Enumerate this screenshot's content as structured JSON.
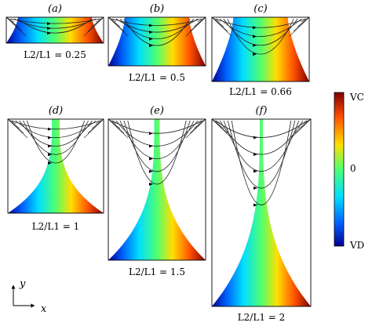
{
  "panels": [
    {
      "label": "(a)",
      "ratio_caption": "L2/L1 = 0.25",
      "ratio": 0.25
    },
    {
      "label": "(b)",
      "ratio_caption": "L2/L1 = 0.5",
      "ratio": 0.5
    },
    {
      "label": "(c)",
      "ratio_caption": "L2/L1 = 0.66",
      "ratio": 0.66
    },
    {
      "label": "(d)",
      "ratio_caption": "L2/L1 = 1",
      "ratio": 1
    },
    {
      "label": "(e)",
      "ratio_caption": "L2/L1 = 1.5",
      "ratio": 1.5
    },
    {
      "label": "(f)",
      "ratio_caption": "L2/L1 = 2",
      "ratio": 2
    }
  ],
  "colorbar": {
    "top_label": "VC",
    "mid_label": "0",
    "bottom_label": "VD",
    "colors": [
      "#00008f",
      "#0060ff",
      "#00dfff",
      "#50ff70",
      "#ffdf00",
      "#ff5000",
      "#7f0000"
    ]
  },
  "axes": {
    "x_label": "x",
    "y_label": "y"
  }
}
